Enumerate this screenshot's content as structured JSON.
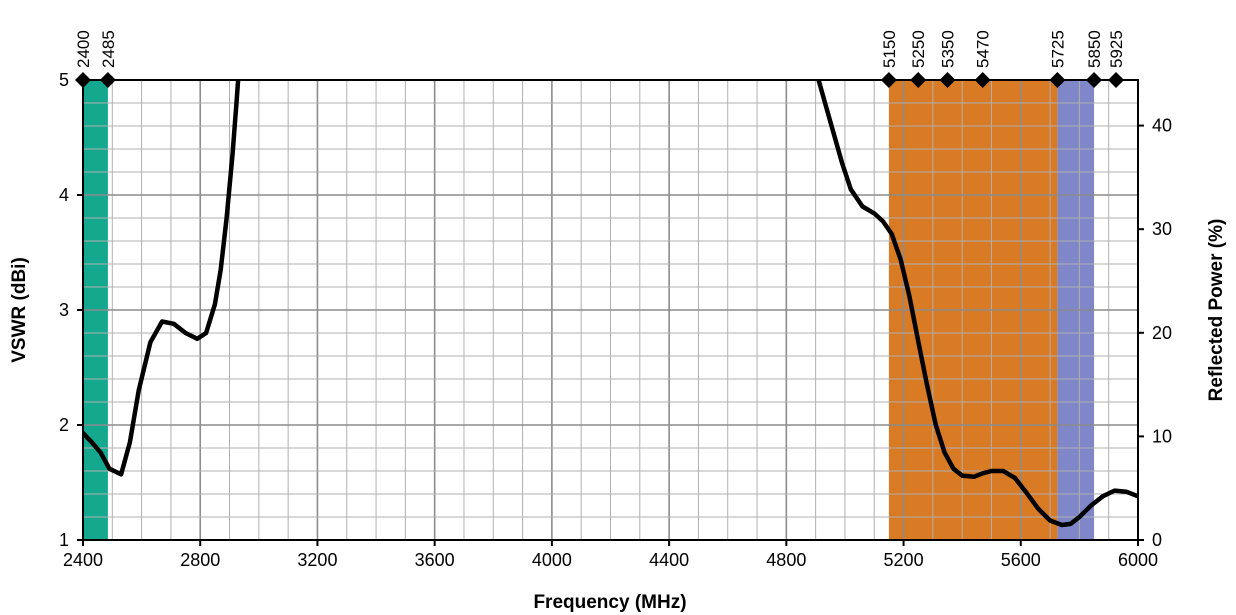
{
  "chart_data": {
    "type": "line",
    "title": "",
    "xlabel": "Frequency (MHz)",
    "ylabel": "VSWR (dBi)",
    "y2label": "Reflected Power (%)",
    "xlim": [
      2400,
      6000
    ],
    "ylim": [
      1,
      5
    ],
    "y2lim": [
      0,
      44.4
    ],
    "grid": true,
    "x_ticks": [
      2400,
      2800,
      3200,
      3600,
      4000,
      4400,
      4800,
      5200,
      5600,
      6000
    ],
    "y_ticks": [
      1,
      2,
      3,
      4,
      5
    ],
    "y2_ticks": [
      0,
      10,
      20,
      30,
      40
    ],
    "band_markers": [
      2400,
      2485,
      5150,
      5250,
      5350,
      5470,
      5725,
      5850,
      5925
    ],
    "bands": [
      {
        "from": 2400,
        "to": 2485,
        "color": "#14a88f"
      },
      {
        "from": 5150,
        "to": 5725,
        "color": "#d97a24"
      },
      {
        "from": 5725,
        "to": 5850,
        "color": "#7f87c8"
      }
    ],
    "series": [
      {
        "color": "#000000",
        "segments": [
          {
            "x": [
              2400,
              2430,
              2460,
              2490,
              2530,
              2560,
              2590,
              2630,
              2670,
              2710,
              2750,
              2790,
              2820,
              2850,
              2870,
              2890,
              2910,
              2925,
              2940,
              2950
            ],
            "y": [
              1.93,
              1.85,
              1.76,
              1.62,
              1.57,
              1.85,
              2.3,
              2.72,
              2.9,
              2.88,
              2.8,
              2.75,
              2.8,
              3.05,
              3.35,
              3.8,
              4.35,
              4.85,
              5.4,
              6.0
            ]
          },
          {
            "x": [
              4910,
              4930,
              4960,
              4990,
              5020,
              5060,
              5100,
              5130,
              5160,
              5190,
              5220,
              5250,
              5280,
              5310,
              5340,
              5370,
              5400,
              5440,
              5470,
              5500,
              5540,
              5580,
              5620,
              5660,
              5700,
              5740,
              5770,
              5800,
              5840,
              5880,
              5920,
              5960,
              6000
            ],
            "y": [
              5.0,
              4.82,
              4.55,
              4.28,
              4.05,
              3.9,
              3.84,
              3.77,
              3.66,
              3.44,
              3.12,
              2.73,
              2.35,
              2.0,
              1.76,
              1.62,
              1.56,
              1.55,
              1.58,
              1.6,
              1.6,
              1.54,
              1.41,
              1.27,
              1.17,
              1.13,
              1.14,
              1.2,
              1.3,
              1.38,
              1.43,
              1.42,
              1.38
            ]
          }
        ]
      }
    ]
  }
}
